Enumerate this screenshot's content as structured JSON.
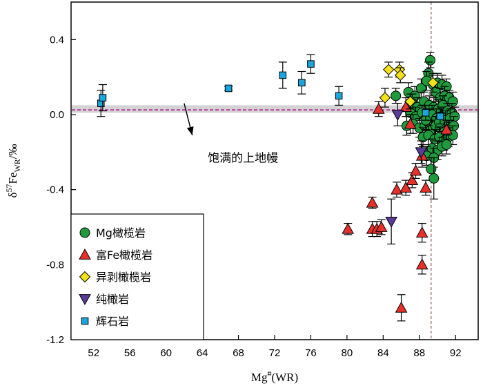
{
  "chart_data": {
    "type": "scatter",
    "xlabel": "Mg#(WR)",
    "xlabel_main": "Mg",
    "xlabel_sup": "#",
    "xlabel_tail": "(WR)",
    "ylabel": "δ57FeWR/‰",
    "ylabel_parts": {
      "delta": "δ",
      "sup": "57",
      "main": "Fe",
      "sub": "WR",
      "tail": "/‰"
    },
    "xlim": [
      49.5,
      94.5
    ],
    "ylim": [
      -1.2,
      0.6
    ],
    "xticks": [
      "52",
      "56",
      "60",
      "64",
      "68",
      "72",
      "76",
      "80",
      "84",
      "88",
      "92"
    ],
    "xtick_values": [
      52,
      56,
      60,
      64,
      68,
      72,
      76,
      80,
      84,
      88,
      92
    ],
    "yticks": [
      "0.4",
      "0.0",
      "-0.4",
      "-0.8",
      "-1.2"
    ],
    "ytick_values": [
      0.4,
      0.0,
      -0.4,
      -0.8,
      -1.2
    ],
    "reference": {
      "band": [
        0.01,
        0.05
      ],
      "line": 0.025,
      "band_color": "#d3d3d3",
      "line_color": "#b3178f",
      "vline_x": 89.3,
      "vline_color": "#8a5a4a"
    },
    "annotation": {
      "text": "饱满的上地幔",
      "arrow_from": [
        62,
        0.06
      ],
      "arrow_to": [
        62.9,
        -0.11
      ],
      "text_pos": [
        68.5,
        -0.23
      ]
    },
    "legend": [
      {
        "label": "Mg橄榄岩",
        "marker": "circle",
        "color": "#1f9b3e"
      },
      {
        "label": "富Fe橄榄岩",
        "marker": "triangle-up",
        "color": "#e8302a"
      },
      {
        "label": "异剥橄榄岩",
        "marker": "diamond",
        "color": "#f5e11a"
      },
      {
        "label": "纯橄岩",
        "marker": "triangle-down",
        "color": "#5b3b9a"
      },
      {
        "label": "辉石岩",
        "marker": "square",
        "color": "#1aa6dc"
      }
    ],
    "series": [
      {
        "name": "Mg橄榄岩",
        "marker": "circle",
        "color": "#1f9b3e",
        "points": [
          [
            89.2,
            0.29,
            0.04
          ],
          [
            89.0,
            0.22,
            0.06
          ],
          [
            89.5,
            0.16,
            0.05
          ],
          [
            90.0,
            0.17,
            0.05
          ],
          [
            90.5,
            0.16,
            0.05
          ],
          [
            91.0,
            0.15,
            0.04
          ],
          [
            85.4,
            0.1,
            0.04
          ],
          [
            86.8,
            0.12,
            0.05
          ],
          [
            87.5,
            0.1,
            0.05
          ],
          [
            88.2,
            0.14,
            0.05
          ],
          [
            88.8,
            0.18,
            0.05
          ],
          [
            89.8,
            0.12,
            0.05
          ],
          [
            90.3,
            0.09,
            0.05
          ],
          [
            90.8,
            0.1,
            0.05
          ],
          [
            91.3,
            0.09,
            0.04
          ],
          [
            91.7,
            0.07,
            0.05
          ],
          [
            87.2,
            0.06,
            0.05
          ],
          [
            87.8,
            0.04,
            0.05
          ],
          [
            88.5,
            0.07,
            0.05
          ],
          [
            89.1,
            0.05,
            0.05
          ],
          [
            89.6,
            0.04,
            0.05
          ],
          [
            90.1,
            0.03,
            0.05
          ],
          [
            90.6,
            0.05,
            0.05
          ],
          [
            91.1,
            0.02,
            0.04
          ],
          [
            91.6,
            0.01,
            0.05
          ],
          [
            87.0,
            0.01,
            0.05
          ],
          [
            87.6,
            -0.01,
            0.05
          ],
          [
            88.3,
            0.01,
            0.04
          ],
          [
            88.9,
            -0.02,
            0.05
          ],
          [
            89.4,
            0.0,
            0.05
          ],
          [
            89.9,
            -0.02,
            0.05
          ],
          [
            90.4,
            -0.01,
            0.05
          ],
          [
            90.9,
            -0.03,
            0.05
          ],
          [
            91.4,
            -0.02,
            0.05
          ],
          [
            91.9,
            -0.01,
            0.05
          ],
          [
            86.6,
            -0.06,
            0.05
          ],
          [
            87.3,
            -0.05,
            0.05
          ],
          [
            88.0,
            -0.07,
            0.05
          ],
          [
            88.6,
            -0.06,
            0.05
          ],
          [
            89.3,
            -0.08,
            0.05
          ],
          [
            89.8,
            -0.06,
            0.05
          ],
          [
            90.3,
            -0.07,
            0.05
          ],
          [
            90.8,
            -0.09,
            0.05
          ],
          [
            91.3,
            -0.08,
            0.05
          ],
          [
            91.8,
            -0.06,
            0.05
          ],
          [
            88.4,
            -0.12,
            0.05
          ],
          [
            89.0,
            -0.11,
            0.05
          ],
          [
            89.7,
            -0.13,
            0.05
          ],
          [
            90.2,
            -0.12,
            0.05
          ],
          [
            90.7,
            -0.14,
            0.05
          ],
          [
            91.2,
            -0.12,
            0.05
          ],
          [
            91.7,
            -0.11,
            0.05
          ],
          [
            89.4,
            -0.18,
            0.05
          ],
          [
            90.0,
            -0.19,
            0.05
          ],
          [
            90.5,
            -0.17,
            0.05
          ],
          [
            91.0,
            -0.16,
            0.05
          ],
          [
            88.8,
            -0.22,
            0.05
          ],
          [
            89.6,
            -0.23,
            0.05
          ],
          [
            89.3,
            -0.29,
            0.06
          ],
          [
            89.6,
            -0.34,
            0.11
          ],
          [
            90.2,
            -0.04,
            0.05
          ],
          [
            88.7,
            -0.03,
            0.05
          ]
        ]
      },
      {
        "name": "富Fe橄榄岩",
        "marker": "triangle-up",
        "color": "#e8302a",
        "points": [
          [
            83.5,
            0.03,
            0.04
          ],
          [
            86.5,
            0.04,
            0.05
          ],
          [
            87.0,
            -0.05,
            0.05
          ],
          [
            91.0,
            -0.08,
            0.05
          ],
          [
            88.3,
            -0.22,
            0.06
          ],
          [
            85.5,
            -0.4,
            0.04
          ],
          [
            86.5,
            -0.39,
            0.04
          ],
          [
            87.2,
            -0.35,
            0.04
          ],
          [
            87.6,
            -0.3,
            0.04
          ],
          [
            88.7,
            -0.39,
            0.04
          ],
          [
            82.8,
            -0.47,
            0.03
          ],
          [
            80.1,
            -0.61,
            0.03
          ],
          [
            82.8,
            -0.61,
            0.04
          ],
          [
            83.3,
            -0.61,
            0.04
          ],
          [
            83.8,
            -0.6,
            0.04
          ],
          [
            88.3,
            -0.63,
            0.05
          ],
          [
            88.3,
            -0.8,
            0.05
          ],
          [
            86.0,
            -1.03,
            0.07
          ]
        ]
      },
      {
        "name": "异剥橄榄岩",
        "marker": "diamond",
        "color": "#f5e11a",
        "points": [
          [
            84.6,
            0.24,
            0.04
          ],
          [
            85.8,
            0.24,
            0.04
          ],
          [
            85.9,
            0.21,
            0.04
          ],
          [
            84.2,
            0.09,
            0.05
          ],
          [
            89.5,
            0.17,
            0.05
          ],
          [
            87.0,
            0.07,
            0.04
          ]
        ]
      },
      {
        "name": "纯橄岩",
        "marker": "triangle-down",
        "color": "#5b3b9a",
        "points": [
          [
            85.6,
            0.0,
            0.06
          ],
          [
            88.2,
            -0.2,
            0.06
          ],
          [
            84.9,
            -0.57,
            0.12
          ]
        ]
      },
      {
        "name": "辉石岩",
        "marker": "square",
        "color": "#1aa6dc",
        "points": [
          [
            52.8,
            0.06,
            0.07
          ],
          [
            53.0,
            0.09,
            0.07
          ],
          [
            66.9,
            0.14,
            0.01
          ],
          [
            72.9,
            0.21,
            0.07
          ],
          [
            75.0,
            0.17,
            0.06
          ],
          [
            76.0,
            0.27,
            0.05
          ],
          [
            79.1,
            0.1,
            0.05
          ],
          [
            88.7,
            0.01,
            0.04
          ],
          [
            90.3,
            -0.01,
            0.04
          ]
        ]
      }
    ]
  }
}
